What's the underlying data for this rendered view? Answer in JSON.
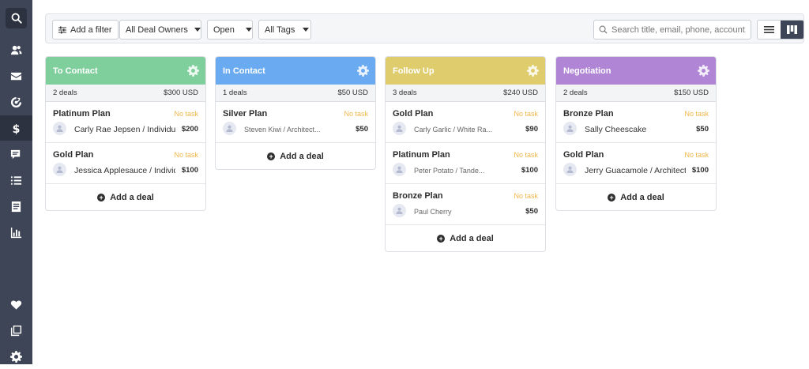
{
  "toolbar": {
    "add_filter_label": "Add a filter",
    "deal_owners_label": "All Deal Owners",
    "status_label": "Open",
    "tags_label": "All Tags",
    "search_placeholder": "Search title, email, phone, account, o"
  },
  "sidebar": {
    "items": [
      {
        "icon": "search-icon"
      },
      {
        "icon": "contacts-icon"
      },
      {
        "icon": "mail-icon"
      },
      {
        "icon": "target-icon"
      },
      {
        "icon": "dollar-icon",
        "active": true
      },
      {
        "icon": "chat-icon"
      },
      {
        "icon": "list-icon"
      },
      {
        "icon": "document-icon"
      },
      {
        "icon": "bar-chart-icon"
      },
      {
        "icon": "heart-icon"
      },
      {
        "icon": "pages-icon"
      },
      {
        "icon": "gear-icon"
      }
    ]
  },
  "colors": {
    "to_contact": "#7fcf9c",
    "in_contact": "#6aaaf0",
    "follow_up": "#dfcc6c",
    "negotiation": "#b085d6",
    "no_task": "#f0b64a",
    "sidebar": "#3e4556"
  },
  "columns": [
    {
      "title": "To Contact",
      "count": "2 deals",
      "total": "$300 USD",
      "deals": [
        {
          "title": "Platinum Plan",
          "task": "No task",
          "contact": "Carly Rae Jepsen / Individual I",
          "amount": "$200"
        },
        {
          "title": "Gold Plan",
          "task": "No task",
          "contact": "Jessica Applesauce / Individu",
          "amount": "$100"
        }
      ],
      "add_label": "Add a deal"
    },
    {
      "title": "In Contact",
      "count": "1 deals",
      "total": "$50 USD",
      "deals": [
        {
          "title": "Silver Plan",
          "task": "No task",
          "contact": "Steven Kiwi / Architect...",
          "amount": "$50"
        }
      ],
      "add_label": "Add a deal"
    },
    {
      "title": "Follow Up",
      "count": "3 deals",
      "total": "$240 USD",
      "deals": [
        {
          "title": "Gold Plan",
          "task": "No task",
          "contact": "Carly Garlic / White Ra...",
          "amount": "$90"
        },
        {
          "title": "Platinum Plan",
          "task": "No task",
          "contact": "Peter Potato / Tande...",
          "amount": "$100"
        },
        {
          "title": "Bronze Plan",
          "task": "No task",
          "contact": "Paul Cherry",
          "amount": "$50"
        }
      ],
      "add_label": "Add a deal"
    },
    {
      "title": "Negotiation",
      "count": "2 deals",
      "total": "$150 USD",
      "deals": [
        {
          "title": "Bronze Plan",
          "task": "No task",
          "contact": "Sally Cheescake",
          "amount": "$50"
        },
        {
          "title": "Gold Plan",
          "task": "No task",
          "contact": "Jerry Guacamole / Architect's",
          "amount": "$100"
        }
      ],
      "add_label": "Add a deal"
    }
  ]
}
